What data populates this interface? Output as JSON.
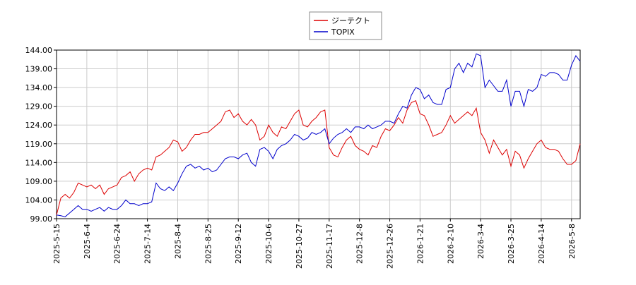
{
  "chart_data": {
    "type": "line",
    "categories": [
      "2025-5-15",
      null,
      null,
      null,
      null,
      null,
      null,
      "2025-6-4",
      null,
      null,
      null,
      null,
      null,
      null,
      "2025-6-24",
      null,
      null,
      null,
      null,
      null,
      null,
      "2025-7-14",
      null,
      null,
      null,
      null,
      null,
      null,
      "2025-8-4",
      null,
      null,
      null,
      null,
      null,
      null,
      "2025-8-25",
      null,
      null,
      null,
      null,
      null,
      null,
      "2025-9-12",
      null,
      null,
      null,
      null,
      null,
      null,
      "2025-10-6",
      null,
      null,
      null,
      null,
      null,
      null,
      "2025-10-27",
      null,
      null,
      null,
      null,
      null,
      null,
      "2025-11-17",
      null,
      null,
      null,
      null,
      null,
      null,
      "2025-12-8",
      null,
      null,
      null,
      null,
      null,
      null,
      "2025-12-26",
      null,
      null,
      null,
      null,
      null,
      null,
      "2026-1-21",
      null,
      null,
      null,
      null,
      null,
      null,
      "2026-2-10",
      null,
      null,
      null,
      null,
      null,
      null,
      "2026-3-4",
      null,
      null,
      null,
      null,
      null,
      null,
      "2026-3-25",
      null,
      null,
      null,
      null,
      null,
      null,
      "2026-4-14",
      null,
      null,
      null,
      null,
      null,
      null,
      "2026-5-8",
      null,
      null
    ],
    "series": [
      {
        "name": "ジーテクト",
        "color": "#dd0000",
        "values": [
          100,
          104.5,
          105.5,
          104.5,
          106,
          108.5,
          108,
          107.5,
          108,
          107,
          108,
          105.5,
          107,
          107.5,
          108,
          110,
          110.5,
          111.5,
          109,
          111,
          112,
          112.5,
          112,
          115.5,
          116,
          117,
          118,
          120,
          119.5,
          117,
          118,
          120,
          121.5,
          121.5,
          122,
          122,
          123,
          124,
          125,
          127.5,
          128,
          126,
          127,
          125,
          124,
          125.5,
          124,
          120,
          121,
          124,
          122,
          121,
          123.5,
          123,
          125,
          127,
          128,
          124,
          123.5,
          125,
          126,
          127.5,
          128,
          118,
          116,
          115.5,
          118,
          120,
          121,
          118.5,
          117.5,
          117,
          116,
          118.5,
          118,
          121,
          123,
          122.5,
          124,
          126,
          124.5,
          128,
          130,
          130.5,
          127,
          126.5,
          124,
          121,
          121.5,
          122,
          124,
          126.5,
          124.5,
          125.5,
          126.5,
          127.5,
          126.5,
          128.5,
          122,
          120,
          116.5,
          120,
          118,
          116,
          117.5,
          113,
          117,
          116,
          112.5,
          115,
          117,
          119,
          120,
          118,
          117.5,
          117.5,
          117,
          115,
          113.5,
          113.5,
          114.5,
          119
        ]
      },
      {
        "name": "TOPIX",
        "color": "#0000cc",
        "values": [
          100,
          99.8,
          99.5,
          100.5,
          101.5,
          102.5,
          101.5,
          101.5,
          101,
          101.5,
          102,
          101,
          102,
          101.5,
          101.5,
          102.5,
          104,
          103,
          103,
          102.5,
          103,
          103,
          103.5,
          108.5,
          107,
          106.5,
          107.5,
          106.5,
          108.5,
          111,
          113,
          113.5,
          112.5,
          113,
          112,
          112.5,
          111.5,
          112,
          113.5,
          115,
          115.5,
          115.5,
          115,
          116,
          116.5,
          114,
          113,
          117.5,
          118,
          117,
          115,
          117.5,
          118.5,
          119,
          120,
          121.5,
          121,
          120,
          120.5,
          122,
          121.5,
          122,
          123,
          119,
          120.5,
          121.5,
          122,
          123,
          122,
          123.5,
          123.5,
          123,
          124,
          123,
          123.5,
          124,
          125,
          125,
          124.5,
          127,
          129,
          128.5,
          132,
          134,
          133.5,
          131,
          132,
          130,
          129.5,
          129.5,
          133.5,
          134,
          139,
          140.5,
          138,
          140.5,
          139.5,
          143,
          142.5,
          134,
          136,
          134.5,
          133,
          133,
          136,
          129,
          133,
          133,
          129,
          133.5,
          133,
          134,
          137.5,
          137,
          138,
          138,
          137.5,
          136,
          136,
          140,
          142.5,
          141
        ]
      }
    ],
    "ylim": [
      99,
      144
    ],
    "yticks": [
      {
        "value": 99,
        "label": "99.00"
      },
      {
        "value": 104,
        "label": "104.00"
      },
      {
        "value": 109,
        "label": "109.00"
      },
      {
        "value": 114,
        "label": "114.00"
      },
      {
        "value": 119,
        "label": "119.00"
      },
      {
        "value": 124,
        "label": "124.00"
      },
      {
        "value": 129,
        "label": "129.00"
      },
      {
        "value": 134,
        "label": "134.00"
      },
      {
        "value": 139,
        "label": "139.00"
      },
      {
        "value": 144,
        "label": "144.00"
      }
    ],
    "grid": true
  }
}
